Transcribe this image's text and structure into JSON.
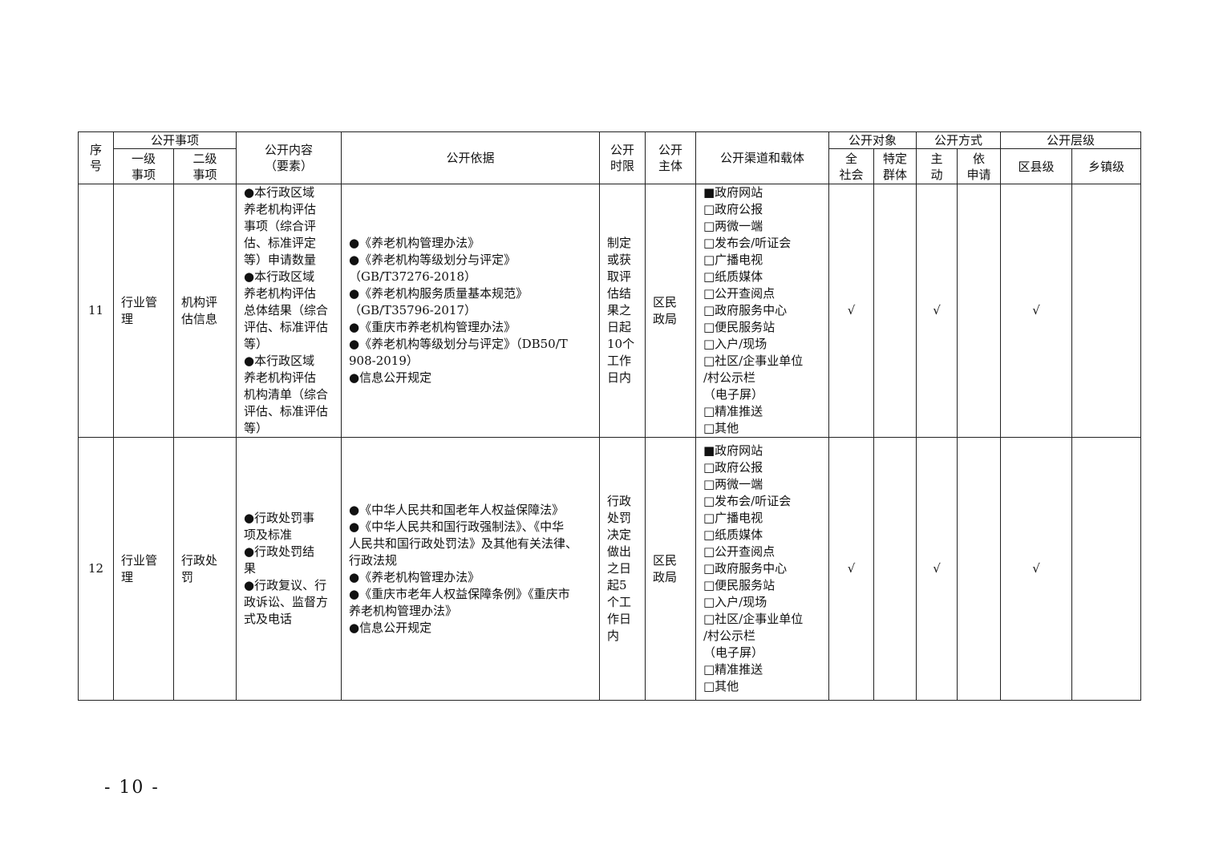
{
  "header": {
    "seq": "序\n号",
    "items": "公开事项",
    "level1": "一级\n事项",
    "level2": "二级\n事项",
    "content": "公开内容\n（要素）",
    "basis": "公开依据",
    "time_limit": "公开\n时限",
    "subject": "公开\n主体",
    "channel": "公开渠道和载体",
    "target": "公开对象",
    "target_all": "全\n社会",
    "target_specific": "特定\n群体",
    "method": "公开方式",
    "method_active": "主\n动",
    "method_request": "依\n申请",
    "level": "公开层级",
    "level_county": "区县级",
    "level_town": "乡镇级"
  },
  "rows": [
    {
      "seq": "11",
      "level1": "行业管\n理",
      "level2": "机构评\n估信息",
      "content": "●本行政区域\n养老机构评估\n事项（综合评\n估、标准评定\n等）申请数量\n●本行政区域\n养老机构评估\n总体结果（综合\n评估、标准评估\n等）\n●本行政区域\n养老机构评估\n机构清单（综合\n评估、标准评估\n等）",
      "basis": "●《养老机构管理办法》\n●《养老机构等级划分与评定》\n（GB/T37276-2018）\n●《养老机构服务质量基本规范》\n（GB/T35796-2017）\n●《重庆市养老机构管理办法》\n●《养老机构等级划分与评定》（DB50/T\n908-2019）\n●信息公开规定",
      "time_limit": "制定\n或获\n取评\n估结\n果之\n日起\n10个\n工作\n日内",
      "subject": "区民\n政局",
      "channel": "■政府网站\n□政府公报\n□两微一端\n□发布会/听证会\n□广播电视\n□纸质媒体\n□公开查阅点\n□政府服务中心\n□便民服务站\n□入户/现场\n□社区/企事业单位\n/村公示栏\n（电子屏）\n□精准推送\n□其他",
      "target_all": "√",
      "target_specific": "",
      "method_active": "√",
      "method_request": "",
      "level_county": "√",
      "level_town": ""
    },
    {
      "seq": "12",
      "level1": "行业管\n理",
      "level2": "行政处\n罚",
      "content": "●行政处罚事\n项及标准\n●行政处罚结\n果\n●行政复议、行\n政诉讼、监督方\n式及电话",
      "basis": "●《中华人民共和国老年人权益保障法》\n●《中华人民共和国行政强制法》、《中华\n人民共和国行政处罚法》及其他有关法律、\n行政法规\n●《养老机构管理办法》\n●《重庆市老年人权益保障条例》《重庆市\n养老机构管理办法》\n●信息公开规定",
      "time_limit": "行政\n处罚\n决定\n做出\n之日\n起5\n个工\n作日\n内",
      "subject": "区民\n政局",
      "channel": "■政府网站\n□政府公报\n□两微一端\n□发布会/听证会\n□广播电视\n□纸质媒体\n□公开查阅点\n□政府服务中心\n□便民服务站\n□入户/现场\n□社区/企事业单位\n/村公示栏\n（电子屏）\n□精准推送\n□其他",
      "target_all": "√",
      "target_specific": "",
      "method_active": "√",
      "method_request": "",
      "level_county": "√",
      "level_town": ""
    }
  ],
  "page_number": "- 10 -"
}
